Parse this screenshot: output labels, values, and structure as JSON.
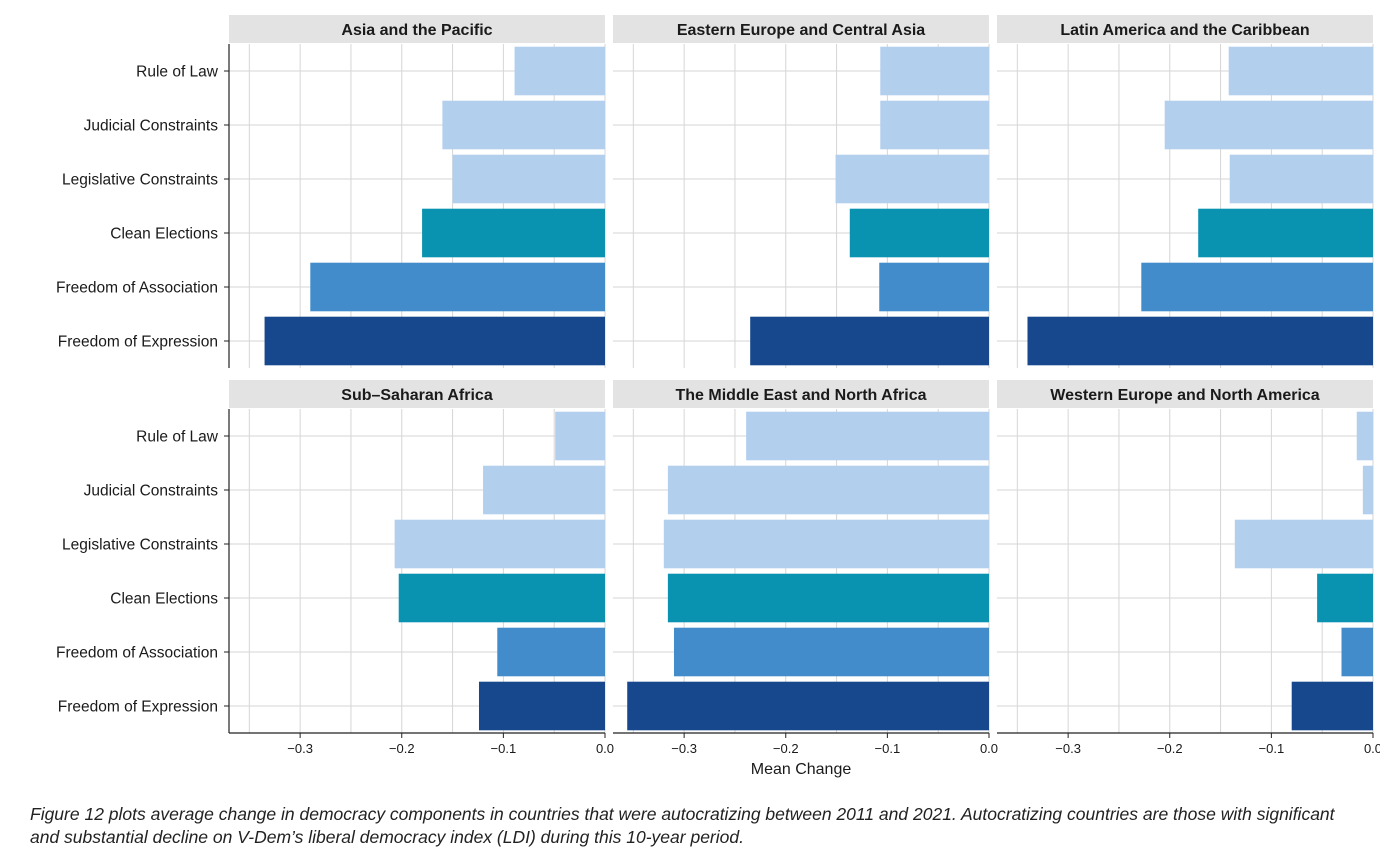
{
  "chart_data": {
    "type": "bar",
    "orientation": "horizontal",
    "xlabel": "Mean Change",
    "xticks": [
      "−0.3",
      "−0.2",
      "−0.1",
      "0.0"
    ],
    "xlim": [
      -0.37,
      0.0
    ],
    "grid": true,
    "categories": [
      "Rule of Law",
      "Judicial Constraints",
      "Legislative Constraints",
      "Clean Elections",
      "Freedom of Association",
      "Freedom of Expression"
    ],
    "category_colors": [
      "#b3cfee",
      "#b3cfee",
      "#b3cfee",
      "#0a92b1",
      "#438ccb",
      "#17478c"
    ],
    "panels": [
      {
        "title": "Asia and the Pacific",
        "values": [
          -0.089,
          -0.16,
          -0.15,
          -0.18,
          -0.29,
          -0.335
        ]
      },
      {
        "title": "Eastern Europe and Central Asia",
        "values": [
          -0.107,
          -0.107,
          -0.151,
          -0.137,
          -0.108,
          -0.235
        ]
      },
      {
        "title": "Latin America and the Caribbean",
        "values": [
          -0.142,
          -0.205,
          -0.141,
          -0.172,
          -0.228,
          -0.34
        ]
      },
      {
        "title": "Sub–Saharan Africa",
        "values": [
          -0.049,
          -0.12,
          -0.207,
          -0.203,
          -0.106,
          -0.124
        ]
      },
      {
        "title": "The Middle East and North Africa",
        "values": [
          -0.239,
          -0.316,
          -0.32,
          -0.316,
          -0.31,
          -0.356
        ]
      },
      {
        "title": "Western Europe and North America",
        "values": [
          -0.016,
          -0.01,
          -0.136,
          -0.055,
          -0.031,
          -0.08
        ]
      }
    ]
  },
  "caption": "Figure 12 plots average change in democracy components in countries that were autocratizing between 2011 and 2021. Autocratizing countries are those with significant and substantial decline on V-Dem’s liberal democracy index (LDI) during this 10-year period."
}
